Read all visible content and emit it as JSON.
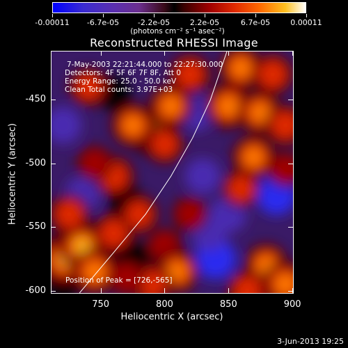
{
  "colorbar": {
    "ticks": [
      "-0.00011",
      "-6.7e-05",
      "-2.2e-05",
      "2.2e-05",
      "6.7e-05",
      "0.00011"
    ],
    "units": "(photons cm⁻² s⁻¹ asec⁻²)"
  },
  "title": "Reconstructed RHESSI Image",
  "annotations": {
    "time_range": "7-May-2003 22:21:44.000 to 22:27:30.000",
    "detectors": "Detectors: 4F 5F 6F 7F 8F, Att 0",
    "energy": "Energy Range: 25.0 - 50.0 keV",
    "clean": "Clean     Total counts: 3.97E+03",
    "peak": "Position of Peak = [726,-565]"
  },
  "axes": {
    "xlabel": "Heliocentric X (arcsec)",
    "ylabel": "Heliocentric Y (arcsec)",
    "xticks": [
      "750",
      "800",
      "850",
      "900"
    ],
    "yticks": [
      "-450",
      "-500",
      "-550",
      "-600"
    ]
  },
  "footer": {
    "date": "3-Jun-2013 19:25"
  },
  "chart_data": {
    "type": "heatmap",
    "title": "Reconstructed RHESSI Image",
    "xlabel": "Heliocentric X (arcsec)",
    "ylabel": "Heliocentric Y (arcsec)",
    "xlim": [
      711,
      901
    ],
    "ylim": [
      -602,
      -412
    ],
    "xticks": [
      750,
      800,
      850,
      900
    ],
    "yticks": [
      -450,
      -500,
      -550,
      -600
    ],
    "colorbar_range": [
      -0.00011,
      0.00011
    ],
    "peak": [
      726,
      -565
    ],
    "limb_curve": [
      [
        733,
        -602
      ],
      [
        760,
        -570
      ],
      [
        785,
        -540
      ],
      [
        805,
        -510
      ],
      [
        822,
        -480
      ],
      [
        836,
        -450
      ],
      [
        849,
        -412
      ]
    ],
    "blobs": [
      {
        "x": 722,
        "y": -575,
        "v": 0.00011
      },
      {
        "x": 735,
        "y": -565,
        "v": 9e-05
      },
      {
        "x": 745,
        "y": -585,
        "v": 8e-05
      },
      {
        "x": 725,
        "y": -540,
        "v": 6e-05
      },
      {
        "x": 760,
        "y": -555,
        "v": 6e-05
      },
      {
        "x": 780,
        "y": -540,
        "v": 5e-05
      },
      {
        "x": 790,
        "y": -475,
        "v": 9e-05
      },
      {
        "x": 775,
        "y": -470,
        "v": 7e-05
      },
      {
        "x": 805,
        "y": -455,
        "v": 7e-05
      },
      {
        "x": 800,
        "y": -485,
        "v": 5e-05
      },
      {
        "x": 760,
        "y": -510,
        "v": 6e-05
      },
      {
        "x": 745,
        "y": -500,
        "v": 4e-05
      },
      {
        "x": 740,
        "y": -440,
        "v": 5e-05
      },
      {
        "x": 820,
        "y": -430,
        "v": 6e-05
      },
      {
        "x": 860,
        "y": -425,
        "v": 7e-05
      },
      {
        "x": 885,
        "y": -430,
        "v": 6e-05
      },
      {
        "x": 850,
        "y": -455,
        "v": 8e-05
      },
      {
        "x": 875,
        "y": -460,
        "v": 7e-05
      },
      {
        "x": 895,
        "y": -470,
        "v": 6e-05
      },
      {
        "x": 870,
        "y": -495,
        "v": 7e-05
      },
      {
        "x": 860,
        "y": -520,
        "v": 5e-05
      },
      {
        "x": 895,
        "y": -505,
        "v": 4e-05
      },
      {
        "x": 820,
        "y": -540,
        "v": 4e-05
      },
      {
        "x": 800,
        "y": -565,
        "v": 4e-05
      },
      {
        "x": 810,
        "y": -585,
        "v": 7e-05
      },
      {
        "x": 790,
        "y": -595,
        "v": 6e-05
      },
      {
        "x": 880,
        "y": -580,
        "v": 7e-05
      },
      {
        "x": 895,
        "y": -595,
        "v": 8e-05
      },
      {
        "x": 865,
        "y": -600,
        "v": 6e-05
      },
      {
        "x": 770,
        "y": -590,
        "v": 4e-05
      },
      {
        "x": 720,
        "y": -470,
        "v": -5e-05
      },
      {
        "x": 735,
        "y": -525,
        "v": -4e-05
      },
      {
        "x": 770,
        "y": -530,
        "v": -3e-05
      },
      {
        "x": 830,
        "y": -510,
        "v": -4e-05
      },
      {
        "x": 840,
        "y": -575,
        "v": -8e-05
      },
      {
        "x": 835,
        "y": -555,
        "v": -4e-05
      },
      {
        "x": 888,
        "y": -525,
        "v": -7e-05
      },
      {
        "x": 825,
        "y": -460,
        "v": -4e-05
      },
      {
        "x": 760,
        "y": -445,
        "v": -3e-05
      },
      {
        "x": 850,
        "y": -540,
        "v": -5e-05
      },
      {
        "x": 720,
        "y": -595,
        "v": -3e-05
      },
      {
        "x": 775,
        "y": -575,
        "v": -3e-05
      }
    ]
  }
}
